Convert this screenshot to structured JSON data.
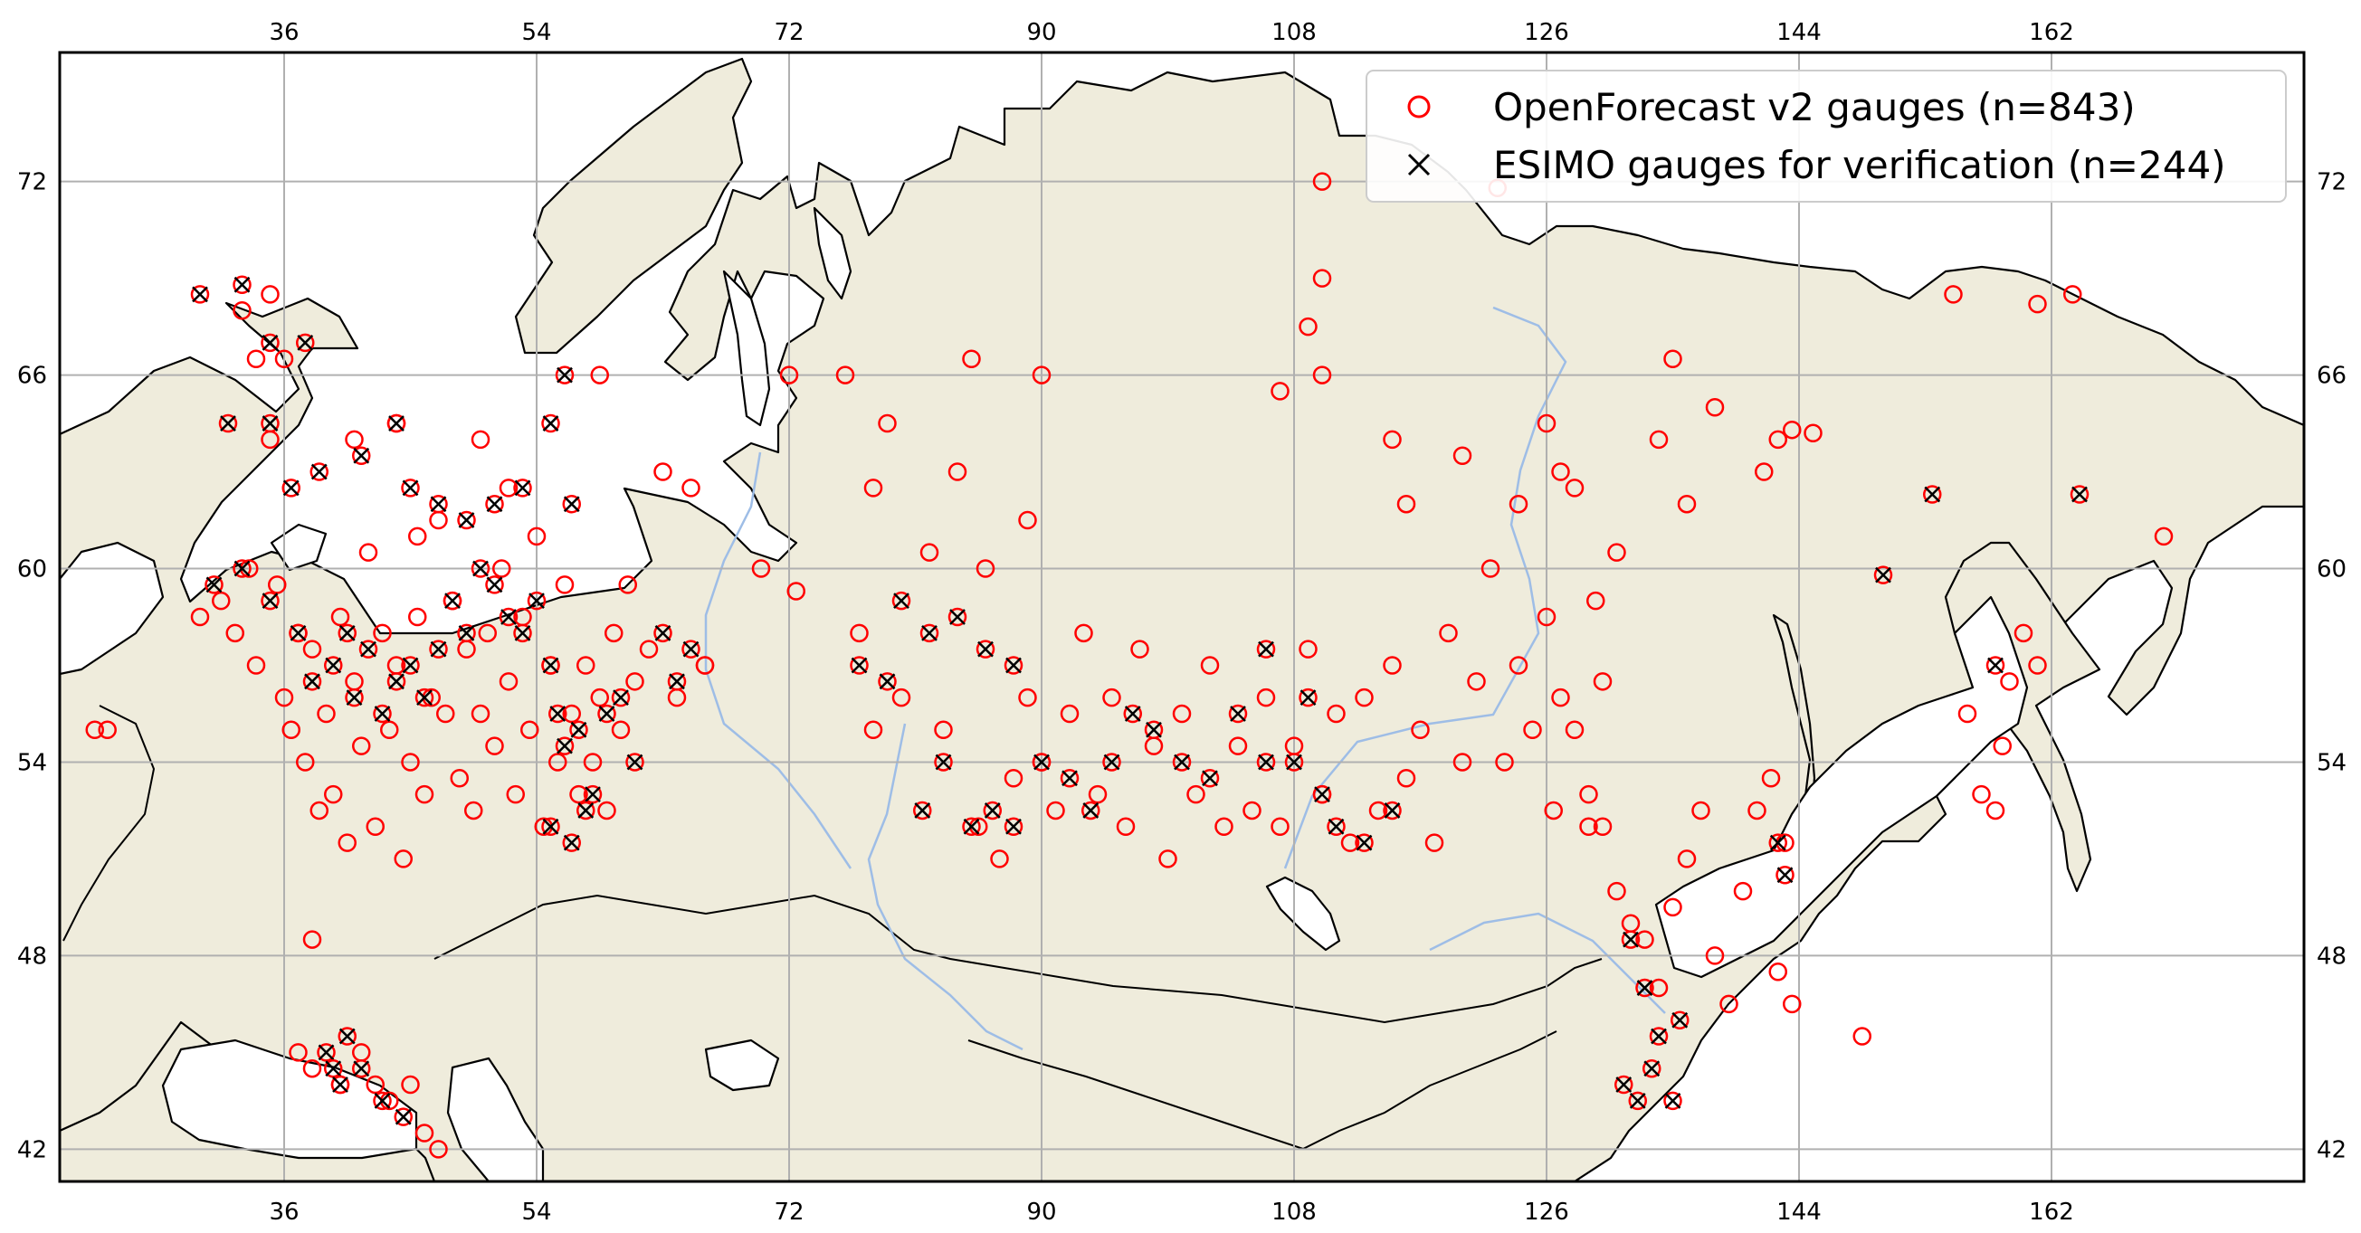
{
  "map": {
    "x_ticks": [
      "36",
      "54",
      "72",
      "90",
      "108",
      "126",
      "144",
      "162"
    ],
    "y_ticks": [
      "72",
      "66",
      "60",
      "54",
      "48",
      "42"
    ],
    "x_tick_values": [
      36,
      54,
      72,
      90,
      108,
      126,
      144,
      162
    ],
    "y_tick_values": [
      72,
      66,
      60,
      54,
      48,
      42
    ],
    "xlim": [
      20,
      180
    ],
    "ylim": [
      41,
      76
    ],
    "grid": true,
    "land_color": "#efecdc",
    "water_color": "#ffffff",
    "river_color": "#9ebde6",
    "legend_position": "top-right"
  },
  "legend": {
    "openforecast_label": "OpenForecast v2 gauges (n=843)",
    "esimo_label": "ESIMO gauges for verification (n=244)"
  },
  "series": {
    "openforecast": {
      "marker": "circle",
      "color": "#ff0000"
    },
    "esimo": {
      "marker": "x",
      "color": "#000000"
    }
  },
  "gauges": {
    "openforecast_sample": [
      [
        22.5,
        55.0
      ],
      [
        23.4,
        55.0
      ],
      [
        30.0,
        58.5
      ],
      [
        31.5,
        59.0
      ],
      [
        32.5,
        58.0
      ],
      [
        33.5,
        60.0
      ],
      [
        34.0,
        57.0
      ],
      [
        35.5,
        59.5
      ],
      [
        36.0,
        56.0
      ],
      [
        36.5,
        55.0
      ],
      [
        37.0,
        58.0
      ],
      [
        37.5,
        54.0
      ],
      [
        38.0,
        57.5
      ],
      [
        38.5,
        52.5
      ],
      [
        39.0,
        55.5
      ],
      [
        39.5,
        53.0
      ],
      [
        40.0,
        58.5
      ],
      [
        40.5,
        51.5
      ],
      [
        41.0,
        56.5
      ],
      [
        41.5,
        54.5
      ],
      [
        42.0,
        60.5
      ],
      [
        42.5,
        52.0
      ],
      [
        43.0,
        58.0
      ],
      [
        43.5,
        55.0
      ],
      [
        44.0,
        57.0
      ],
      [
        44.5,
        51.0
      ],
      [
        45.0,
        54.0
      ],
      [
        45.5,
        58.5
      ],
      [
        46.0,
        53.0
      ],
      [
        46.5,
        56.0
      ],
      [
        47.0,
        61.5
      ],
      [
        47.5,
        55.5
      ],
      [
        48.0,
        59.0
      ],
      [
        48.5,
        53.5
      ],
      [
        49.0,
        57.5
      ],
      [
        49.5,
        52.5
      ],
      [
        50.0,
        55.5
      ],
      [
        50.5,
        58.0
      ],
      [
        51.0,
        54.5
      ],
      [
        51.5,
        60.0
      ],
      [
        52.0,
        56.5
      ],
      [
        52.5,
        53.0
      ],
      [
        53.0,
        58.5
      ],
      [
        53.5,
        55.0
      ],
      [
        54.0,
        61.0
      ],
      [
        54.5,
        52.0
      ],
      [
        55.0,
        57.0
      ],
      [
        55.5,
        54.0
      ],
      [
        56.0,
        59.5
      ],
      [
        56.5,
        55.5
      ],
      [
        57.0,
        53.0
      ],
      [
        57.5,
        57.0
      ],
      [
        58.0,
        54.0
      ],
      [
        58.5,
        56.0
      ],
      [
        59.0,
        52.5
      ],
      [
        59.5,
        58.0
      ],
      [
        60.0,
        55.0
      ],
      [
        60.5,
        59.5
      ],
      [
        61.0,
        56.5
      ],
      [
        62.0,
        57.5
      ],
      [
        63.0,
        63.0
      ],
      [
        64.0,
        56.0
      ],
      [
        65.0,
        62.5
      ],
      [
        66.0,
        57.0
      ],
      [
        58.5,
        66.0
      ],
      [
        35.0,
        64.0
      ],
      [
        34.0,
        66.5
      ],
      [
        33.0,
        68.0
      ],
      [
        35.0,
        68.5
      ],
      [
        36.0,
        66.5
      ],
      [
        44.0,
        64.5
      ],
      [
        45.5,
        61.0
      ],
      [
        50.0,
        64.0
      ],
      [
        52.0,
        62.5
      ],
      [
        41.0,
        64.0
      ],
      [
        38.0,
        48.5
      ],
      [
        37.0,
        45.0
      ],
      [
        38.0,
        44.5
      ],
      [
        40.0,
        44.0
      ],
      [
        41.5,
        45.0
      ],
      [
        42.5,
        44.0
      ],
      [
        43.5,
        43.5
      ],
      [
        45.0,
        44.0
      ],
      [
        46.0,
        42.5
      ],
      [
        47.0,
        42.0
      ],
      [
        72.5,
        59.3
      ],
      [
        66.0,
        57.0
      ],
      [
        70.0,
        60.0
      ],
      [
        72.0,
        66.0
      ],
      [
        76.0,
        66.0
      ],
      [
        78.0,
        62.5
      ],
      [
        79.0,
        64.5
      ],
      [
        82.0,
        60.5
      ],
      [
        84.0,
        63.0
      ],
      [
        86.0,
        60.0
      ],
      [
        89.0,
        61.5
      ],
      [
        90.0,
        66.0
      ],
      [
        85.0,
        66.5
      ],
      [
        77.0,
        58.0
      ],
      [
        78.0,
        55.0
      ],
      [
        80.0,
        56.0
      ],
      [
        83.0,
        55.0
      ],
      [
        85.5,
        52.0
      ],
      [
        87.0,
        51.0
      ],
      [
        88.0,
        53.5
      ],
      [
        89.0,
        56.0
      ],
      [
        90.0,
        54.0
      ],
      [
        91.0,
        52.5
      ],
      [
        92.0,
        55.5
      ],
      [
        93.0,
        58.0
      ],
      [
        94.0,
        53.0
      ],
      [
        95.0,
        56.0
      ],
      [
        96.0,
        52.0
      ],
      [
        97.0,
        57.5
      ],
      [
        98.0,
        54.5
      ],
      [
        99.0,
        51.0
      ],
      [
        100.0,
        55.5
      ],
      [
        101.0,
        53.0
      ],
      [
        102.0,
        57.0
      ],
      [
        103.0,
        52.0
      ],
      [
        104.0,
        54.5
      ],
      [
        105.0,
        52.5
      ],
      [
        106.0,
        56.0
      ],
      [
        107.0,
        52.0
      ],
      [
        108.0,
        54.5
      ],
      [
        109.0,
        57.5
      ],
      [
        110.0,
        53.0
      ],
      [
        111.0,
        55.5
      ],
      [
        112.0,
        51.5
      ],
      [
        113.0,
        56.0
      ],
      [
        114.0,
        52.5
      ],
      [
        115.0,
        57.0
      ],
      [
        116.0,
        53.5
      ],
      [
        117.0,
        55.0
      ],
      [
        118.0,
        51.5
      ],
      [
        119.0,
        58.0
      ],
      [
        120.0,
        54.0
      ],
      [
        121.0,
        56.5
      ],
      [
        122.0,
        60.0
      ],
      [
        123.0,
        54.0
      ],
      [
        124.0,
        57.0
      ],
      [
        125.0,
        55.0
      ],
      [
        126.0,
        58.5
      ],
      [
        127.0,
        56.0
      ],
      [
        128.0,
        55.0
      ],
      [
        129.0,
        53.0
      ],
      [
        130.0,
        52.0
      ],
      [
        131.0,
        50.0
      ],
      [
        132.0,
        49.0
      ],
      [
        133.0,
        48.5
      ],
      [
        134.0,
        47.0
      ],
      [
        135.0,
        49.5
      ],
      [
        136.0,
        51.0
      ],
      [
        137.0,
        52.5
      ],
      [
        138.0,
        48.0
      ],
      [
        139.0,
        46.5
      ],
      [
        140.0,
        50.0
      ],
      [
        141.0,
        52.5
      ],
      [
        142.0,
        53.5
      ],
      [
        143.0,
        51.5
      ],
      [
        142.5,
        47.5
      ],
      [
        143.5,
        46.5
      ],
      [
        148.5,
        45.5
      ],
      [
        110.0,
        72.0
      ],
      [
        110.0,
        69.0
      ],
      [
        109.0,
        67.5
      ],
      [
        110.0,
        66.0
      ],
      [
        107.0,
        65.5
      ],
      [
        116.0,
        62.0
      ],
      [
        115.0,
        64.0
      ],
      [
        120.0,
        63.5
      ],
      [
        124.0,
        62.0
      ],
      [
        127.0,
        63.0
      ],
      [
        131.0,
        60.5
      ],
      [
        134.0,
        64.0
      ],
      [
        135.0,
        66.5
      ],
      [
        136.0,
        62.0
      ],
      [
        138.0,
        65.0
      ],
      [
        141.5,
        63.0
      ],
      [
        142.5,
        64.0
      ],
      [
        143.5,
        64.3
      ],
      [
        145.0,
        64.2
      ],
      [
        155.0,
        68.5
      ],
      [
        161.0,
        68.2
      ],
      [
        163.5,
        68.5
      ],
      [
        170.0,
        61.0
      ],
      [
        156.0,
        55.5
      ],
      [
        157.0,
        53.0
      ],
      [
        158.0,
        52.5
      ],
      [
        158.5,
        54.5
      ],
      [
        159.0,
        56.5
      ],
      [
        160.0,
        58.0
      ],
      [
        161.0,
        57.0
      ],
      [
        122.5,
        71.8
      ],
      [
        126.0,
        64.5
      ],
      [
        128.0,
        62.5
      ],
      [
        129.5,
        59.0
      ],
      [
        130.0,
        56.5
      ],
      [
        126.5,
        52.5
      ],
      [
        129.0,
        52.0
      ]
    ],
    "esimo_sample": [
      [
        30.0,
        68.5
      ],
      [
        33.0,
        68.8
      ],
      [
        35.0,
        67.0
      ],
      [
        37.5,
        67.0
      ],
      [
        56.0,
        66.0
      ],
      [
        32.0,
        64.5
      ],
      [
        35.0,
        64.5
      ],
      [
        36.5,
        62.5
      ],
      [
        38.5,
        63.0
      ],
      [
        41.5,
        63.5
      ],
      [
        44.0,
        64.5
      ],
      [
        45.0,
        62.5
      ],
      [
        47.0,
        62.0
      ],
      [
        49.0,
        61.5
      ],
      [
        51.0,
        62.0
      ],
      [
        53.0,
        62.5
      ],
      [
        55.0,
        64.5
      ],
      [
        56.5,
        62.0
      ],
      [
        31.0,
        59.5
      ],
      [
        33.0,
        60.0
      ],
      [
        35.0,
        59.0
      ],
      [
        37.0,
        58.0
      ],
      [
        38.0,
        56.5
      ],
      [
        39.5,
        57.0
      ],
      [
        40.5,
        58.0
      ],
      [
        41.0,
        56.0
      ],
      [
        42.0,
        57.5
      ],
      [
        43.0,
        55.5
      ],
      [
        44.0,
        56.5
      ],
      [
        45.0,
        57.0
      ],
      [
        46.0,
        56.0
      ],
      [
        47.0,
        57.5
      ],
      [
        48.0,
        59.0
      ],
      [
        49.0,
        58.0
      ],
      [
        50.0,
        60.0
      ],
      [
        51.0,
        59.5
      ],
      [
        52.0,
        58.5
      ],
      [
        53.0,
        58.0
      ],
      [
        54.0,
        59.0
      ],
      [
        55.0,
        57.0
      ],
      [
        55.5,
        55.5
      ],
      [
        56.0,
        54.5
      ],
      [
        57.0,
        55.0
      ],
      [
        58.0,
        53.0
      ],
      [
        59.0,
        55.5
      ],
      [
        60.0,
        56.0
      ],
      [
        61.0,
        54.0
      ],
      [
        63.0,
        58.0
      ],
      [
        64.0,
        56.5
      ],
      [
        65.0,
        57.5
      ],
      [
        55.0,
        52.0
      ],
      [
        56.5,
        51.5
      ],
      [
        57.5,
        52.5
      ],
      [
        39.0,
        45.0
      ],
      [
        39.5,
        44.5
      ],
      [
        40.0,
        44.0
      ],
      [
        40.5,
        45.5
      ],
      [
        41.5,
        44.5
      ],
      [
        43.0,
        43.5
      ],
      [
        44.5,
        43.0
      ],
      [
        77.0,
        57.0
      ],
      [
        79.0,
        56.5
      ],
      [
        80.0,
        59.0
      ],
      [
        82.0,
        58.0
      ],
      [
        84.0,
        58.5
      ],
      [
        86.0,
        57.5
      ],
      [
        88.0,
        57.0
      ],
      [
        81.5,
        52.5
      ],
      [
        83.0,
        54.0
      ],
      [
        85.0,
        52.0
      ],
      [
        86.5,
        52.5
      ],
      [
        88.0,
        52.0
      ],
      [
        90.0,
        54.0
      ],
      [
        92.0,
        53.5
      ],
      [
        93.5,
        52.5
      ],
      [
        95.0,
        54.0
      ],
      [
        96.5,
        55.5
      ],
      [
        98.0,
        55.0
      ],
      [
        100.0,
        54.0
      ],
      [
        102.0,
        53.5
      ],
      [
        104.0,
        55.5
      ],
      [
        106.0,
        54.0
      ],
      [
        108.0,
        54.0
      ],
      [
        110.0,
        53.0
      ],
      [
        111.0,
        52.0
      ],
      [
        113.0,
        51.5
      ],
      [
        115.0,
        52.5
      ],
      [
        106.0,
        57.5
      ],
      [
        109.0,
        56.0
      ],
      [
        132.0,
        48.5
      ],
      [
        133.0,
        47.0
      ],
      [
        134.0,
        45.5
      ],
      [
        135.5,
        46.0
      ],
      [
        133.5,
        44.5
      ],
      [
        131.5,
        44.0
      ],
      [
        132.5,
        43.5
      ],
      [
        135.0,
        43.5
      ],
      [
        142.5,
        51.5
      ],
      [
        143.0,
        50.5
      ],
      [
        150.0,
        59.8
      ],
      [
        153.5,
        62.3
      ],
      [
        164.0,
        62.3
      ],
      [
        158.0,
        57.0
      ]
    ]
  }
}
